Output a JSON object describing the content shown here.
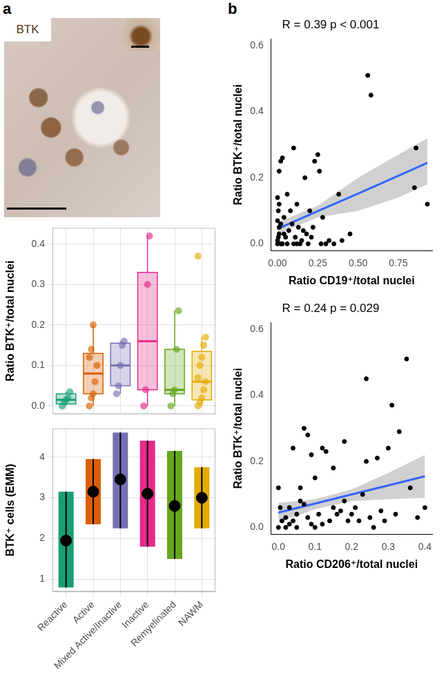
{
  "panel_labels": [
    "a",
    "b"
  ],
  "image": {
    "label": "BTK"
  },
  "chart_data": [
    {
      "type": "box",
      "categories": [
        "Reactive",
        "Active",
        "Mixed Active/Inactive",
        "Inactive",
        "Remyelinated",
        "NAWM"
      ],
      "colors": [
        "#1B9E77",
        "#D95F02",
        "#7570B3",
        "#E7298A",
        "#66A61E",
        "#E6AB02"
      ],
      "ylabel": "Ratio BTK⁺/total nuclei",
      "ylim": [
        -0.02,
        0.44
      ],
      "yticks": [
        {
          "value": 0,
          "label": "0.0"
        },
        0.1,
        0.2,
        0.3,
        0.4
      ],
      "boxes": [
        {
          "min": 0.0,
          "q1": 0.005,
          "median": 0.015,
          "q3": 0.03,
          "max": 0.035
        },
        {
          "min": 0.0,
          "q1": 0.03,
          "median": 0.08,
          "q3": 0.13,
          "max": 0.2
        },
        {
          "min": 0.03,
          "q1": 0.05,
          "median": 0.1,
          "q3": 0.155,
          "max": 0.16
        },
        {
          "min": 0.0,
          "q1": 0.04,
          "median": 0.16,
          "q3": 0.33,
          "max": 0.42
        },
        {
          "min": 0.0,
          "q1": 0.03,
          "median": 0.04,
          "q3": 0.14,
          "max": 0.235
        },
        {
          "min": 0.0,
          "q1": 0.015,
          "median": 0.06,
          "q3": 0.135,
          "max": 0.17
        }
      ],
      "points": [
        [
          0.0,
          0.01,
          0.015,
          0.02,
          0.035
        ],
        [
          0.0,
          0.02,
          0.03,
          0.06,
          0.1,
          0.12,
          0.14,
          0.2
        ],
        [
          0.03,
          0.05,
          0.1,
          0.15,
          0.16
        ],
        [
          0.0,
          0.04,
          0.3,
          0.42
        ],
        [
          0.0,
          0.03,
          0.04,
          0.14,
          0.235
        ],
        [
          0.0,
          0.01,
          0.02,
          0.04,
          0.06,
          0.07,
          0.1,
          0.12,
          0.15,
          0.17,
          0.37
        ]
      ],
      "grid": true,
      "tick_labels": "y"
    },
    {
      "type": "errorbar",
      "categories": [
        "Reactive",
        "Active",
        "Mixed Active/Inactive",
        "Inactive",
        "Remyelinated",
        "NAWM"
      ],
      "colors": [
        "#1B9E77",
        "#D95F02",
        "#7570B3",
        "#E7298A",
        "#66A61E",
        "#E6AB02"
      ],
      "color": "#000000",
      "ylabel": "BTK⁺ cells (EMM)",
      "values": [
        1.95,
        3.15,
        3.45,
        3.1,
        2.8,
        3.0
      ],
      "ci_lower": [
        0.8,
        2.35,
        2.25,
        1.8,
        1.5,
        2.25
      ],
      "ci_upper": [
        3.15,
        3.95,
        4.6,
        4.4,
        4.15,
        3.75
      ],
      "ylim": [
        0.7,
        4.7
      ],
      "yticks": [
        1,
        2,
        3,
        4
      ],
      "grid": true
    },
    {
      "type": "scatter",
      "title": "R = 0.39 p < 0.001",
      "xlabel": "Ratio CD19⁺/total nuclei",
      "ylabel": "Ratio BTK⁺/total nuclei",
      "color": "#000000",
      "xlim": [
        -0.04,
        0.96
      ],
      "xticks": [
        {
          "value": 0,
          "label": "0.00"
        },
        0.25,
        {
          "value": 0.5,
          "label": "0.50"
        },
        0.75
      ],
      "ylim": [
        -0.02,
        0.62
      ],
      "yticks": [
        {
          "value": 0,
          "label": "0.0"
        },
        0.2,
        0.4,
        0.6
      ],
      "points": [
        [
          0,
          0
        ],
        [
          0,
          0.01
        ],
        [
          0.005,
          0.02
        ],
        [
          0.01,
          0.03
        ],
        [
          0.01,
          0.05
        ],
        [
          0,
          0.07
        ],
        [
          0.005,
          0.1
        ],
        [
          0.01,
          0.12
        ],
        [
          0,
          0.14
        ],
        [
          0.02,
          0
        ],
        [
          0.02,
          0.25
        ],
        [
          0.03,
          0.26
        ],
        [
          0.01,
          0.22
        ],
        [
          0.04,
          0.08
        ],
        [
          0.05,
          0.02
        ],
        [
          0.06,
          0
        ],
        [
          0.06,
          0.15
        ],
        [
          0.07,
          0.04
        ],
        [
          0.08,
          0.1
        ],
        [
          0.09,
          0.06
        ],
        [
          0.1,
          0
        ],
        [
          0.1,
          0.29
        ],
        [
          0.11,
          0.02
        ],
        [
          0.12,
          0.12
        ],
        [
          0.13,
          0.05
        ],
        [
          0.14,
          0
        ],
        [
          0.15,
          0.01
        ],
        [
          0.16,
          0.04
        ],
        [
          0.17,
          0.2
        ],
        [
          0.18,
          0.03
        ],
        [
          0.2,
          0.1
        ],
        [
          0.21,
          0.02
        ],
        [
          0.23,
          0.25
        ],
        [
          0.25,
          0.27
        ],
        [
          0.26,
          0.22
        ],
        [
          0.27,
          0
        ],
        [
          0.28,
          0.08
        ],
        [
          0.3,
          0
        ],
        [
          0.32,
          0.01
        ],
        [
          0.35,
          0
        ],
        [
          0.38,
          0.15
        ],
        [
          0.4,
          0.01
        ],
        [
          0.45,
          0.03
        ],
        [
          0.56,
          0.51
        ],
        [
          0.58,
          0.45
        ],
        [
          0.85,
          0.17
        ],
        [
          0.86,
          0.29
        ],
        [
          0.93,
          0.12
        ],
        [
          0.02,
          0.06
        ],
        [
          0.03,
          0
        ],
        [
          0.04,
          0.03
        ],
        [
          0.12,
          0
        ],
        [
          0.22,
          0.05
        ],
        [
          0.19,
          0
        ]
      ],
      "fit": {
        "color": "#3366FF",
        "x": [
          0,
          0.25,
          0.5,
          0.75,
          0.93
        ],
        "y": [
          0.045,
          0.099,
          0.152,
          0.206,
          0.245
        ],
        "ci_lower": [
          0.03,
          0.08,
          0.1,
          0.14,
          0.18
        ],
        "ci_upper": [
          0.065,
          0.115,
          0.2,
          0.27,
          0.32
        ]
      },
      "grid": false
    },
    {
      "type": "scatter",
      "title": "R = 0.24 p = 0.029",
      "xlabel": "Ratio CD206⁺/total nuclei",
      "ylabel": "Ratio BTK⁺/total nuclei",
      "color": "#000000",
      "xlim": [
        -0.02,
        0.42
      ],
      "xticks": [
        {
          "value": 0,
          "label": "0.0"
        },
        0.1,
        0.2,
        0.3,
        0.4
      ],
      "ylim": [
        -0.02,
        0.62
      ],
      "yticks": [
        {
          "value": 0,
          "label": "0.0"
        },
        0.2,
        0.4,
        0.6
      ],
      "points": [
        [
          0,
          0
        ],
        [
          0,
          0.12
        ],
        [
          0.005,
          0.06
        ],
        [
          0.01,
          0.02
        ],
        [
          0.02,
          0
        ],
        [
          0.02,
          0.03
        ],
        [
          0.03,
          0.01
        ],
        [
          0.03,
          0.06
        ],
        [
          0.04,
          0.02
        ],
        [
          0.04,
          0.24
        ],
        [
          0.05,
          0
        ],
        [
          0.05,
          0.04
        ],
        [
          0.06,
          0.08
        ],
        [
          0.06,
          0.12
        ],
        [
          0.07,
          0.3
        ],
        [
          0.07,
          0.07
        ],
        [
          0.08,
          0.28
        ],
        [
          0.08,
          0.03
        ],
        [
          0.09,
          0.01
        ],
        [
          0.09,
          0.22
        ],
        [
          0.1,
          0
        ],
        [
          0.1,
          0.15
        ],
        [
          0.11,
          0.04
        ],
        [
          0.12,
          0.24
        ],
        [
          0.12,
          0.01
        ],
        [
          0.13,
          0.23
        ],
        [
          0.14,
          0.02
        ],
        [
          0.15,
          0.06
        ],
        [
          0.15,
          0.18
        ],
        [
          0.16,
          0.04
        ],
        [
          0.17,
          0.05
        ],
        [
          0.18,
          0.26
        ],
        [
          0.18,
          0.08
        ],
        [
          0.19,
          0.02
        ],
        [
          0.2,
          0.04
        ],
        [
          0.21,
          0.06
        ],
        [
          0.22,
          0.02
        ],
        [
          0.23,
          0.1
        ],
        [
          0.24,
          0.45
        ],
        [
          0.24,
          0.2
        ],
        [
          0.25,
          0.03
        ],
        [
          0.26,
          0
        ],
        [
          0.27,
          0.21
        ],
        [
          0.28,
          0.05
        ],
        [
          0.29,
          0.02
        ],
        [
          0.3,
          0.24
        ],
        [
          0.31,
          0.37
        ],
        [
          0.32,
          0.04
        ],
        [
          0.33,
          0.29
        ],
        [
          0.35,
          0.51
        ],
        [
          0.36,
          0.12
        ],
        [
          0.38,
          0.03
        ],
        [
          0.4,
          0.06
        ]
      ],
      "fit": {
        "color": "#3366FF",
        "x": [
          0,
          0.1,
          0.2,
          0.3,
          0.4
        ],
        "y": [
          0.045,
          0.072,
          0.1,
          0.127,
          0.155
        ],
        "ci_lower": [
          0.015,
          0.055,
          0.08,
          0.085,
          0.09
        ],
        "ci_upper": [
          0.075,
          0.085,
          0.115,
          0.165,
          0.22
        ]
      },
      "grid": false
    }
  ]
}
